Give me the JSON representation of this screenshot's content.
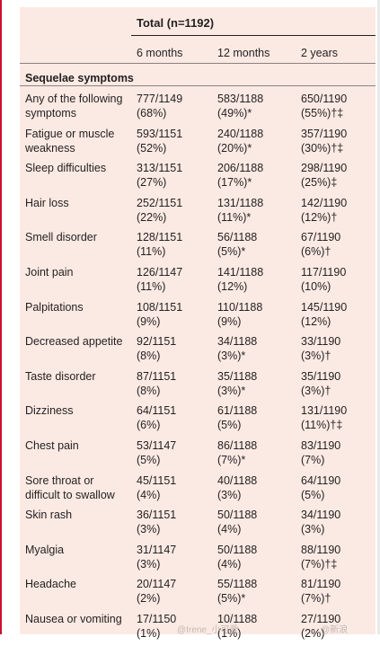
{
  "table": {
    "total_header": "Total (n=1192)",
    "columns": [
      "6 months",
      "12 months",
      "2 years"
    ],
    "section_title": "Sequelae symptoms",
    "rows": [
      {
        "label": "Any of the following symptoms",
        "m6": [
          "777/1149",
          "(68%)"
        ],
        "m12": [
          "583/1188",
          "(49%)*"
        ],
        "y2": [
          "650/1190",
          "(55%)†‡"
        ]
      },
      {
        "label": "Fatigue or muscle weakness",
        "m6": [
          "593/1151",
          "(52%)"
        ],
        "m12": [
          "240/1188",
          "(20%)*"
        ],
        "y2": [
          "357/1190",
          "(30%)†‡"
        ]
      },
      {
        "label": "Sleep difficulties",
        "m6": [
          "313/1151",
          "(27%)"
        ],
        "m12": [
          "206/1188",
          "(17%)*"
        ],
        "y2": [
          "298/1190",
          "(25%)‡"
        ]
      },
      {
        "label": "Hair loss",
        "m6": [
          "252/1151",
          "(22%)"
        ],
        "m12": [
          "131/1188",
          "(11%)*"
        ],
        "y2": [
          "142/1190",
          "(12%)†"
        ]
      },
      {
        "label": "Smell disorder",
        "m6": [
          "128/1151",
          "(11%)"
        ],
        "m12": [
          "56/1188",
          "(5%)*"
        ],
        "y2": [
          "67/1190",
          "(6%)†"
        ]
      },
      {
        "label": "Joint pain",
        "m6": [
          "126/1147",
          "(11%)"
        ],
        "m12": [
          "141/1188",
          "(12%)"
        ],
        "y2": [
          "117/1190",
          "(10%)"
        ]
      },
      {
        "label": "Palpitations",
        "m6": [
          "108/1151",
          "(9%)"
        ],
        "m12": [
          "110/1188",
          "(9%)"
        ],
        "y2": [
          "145/1190",
          "(12%)"
        ]
      },
      {
        "label": "Decreased appetite",
        "m6": [
          "92/1151",
          "(8%)"
        ],
        "m12": [
          "34/1188",
          "(3%)*"
        ],
        "y2": [
          "33/1190",
          "(3%)†"
        ]
      },
      {
        "label": "Taste disorder",
        "m6": [
          "87/1151",
          "(8%)"
        ],
        "m12": [
          "35/1188",
          "(3%)*"
        ],
        "y2": [
          "35/1190",
          "(3%)†"
        ]
      },
      {
        "label": "Dizziness",
        "m6": [
          "64/1151",
          "(6%)"
        ],
        "m12": [
          "61/1188",
          "(5%)"
        ],
        "y2": [
          "131/1190",
          "(11%)†‡"
        ]
      },
      {
        "label": "Chest pain",
        "m6": [
          "53/1147",
          "(5%)"
        ],
        "m12": [
          "86/1188",
          "(7%)*"
        ],
        "y2": [
          "83/1190",
          "(7%)"
        ]
      },
      {
        "label": "Sore throat or difficult to swallow",
        "m6": [
          "45/1151",
          "(4%)"
        ],
        "m12": [
          "40/1188",
          "(3%)"
        ],
        "y2": [
          "64/1190",
          "(5%)"
        ]
      },
      {
        "label": "Skin rash",
        "m6": [
          "36/1151",
          "(3%)"
        ],
        "m12": [
          "50/1188",
          "(4%)"
        ],
        "y2": [
          "34/1190",
          "(3%)"
        ]
      },
      {
        "label": "Myalgia",
        "m6": [
          "31/1147",
          "(3%)"
        ],
        "m12": [
          "50/1188",
          "(4%)"
        ],
        "y2": [
          "88/1190",
          "(7%)†‡"
        ]
      },
      {
        "label": "Headache",
        "m6": [
          "20/1147",
          "(2%)"
        ],
        "m12": [
          "55/1188",
          "(5%)*"
        ],
        "y2": [
          "81/1190",
          "(7%)†"
        ]
      },
      {
        "label": "Nausea or vomiting",
        "m6": [
          "17/1150",
          "(1%)"
        ],
        "m12": [
          "10/1188",
          "(1%)"
        ],
        "y2": [
          "27/1190",
          "(2%)"
        ]
      }
    ]
  },
  "watermark": {
    "left": "@Irene_小可爱",
    "right": "@新浪"
  }
}
